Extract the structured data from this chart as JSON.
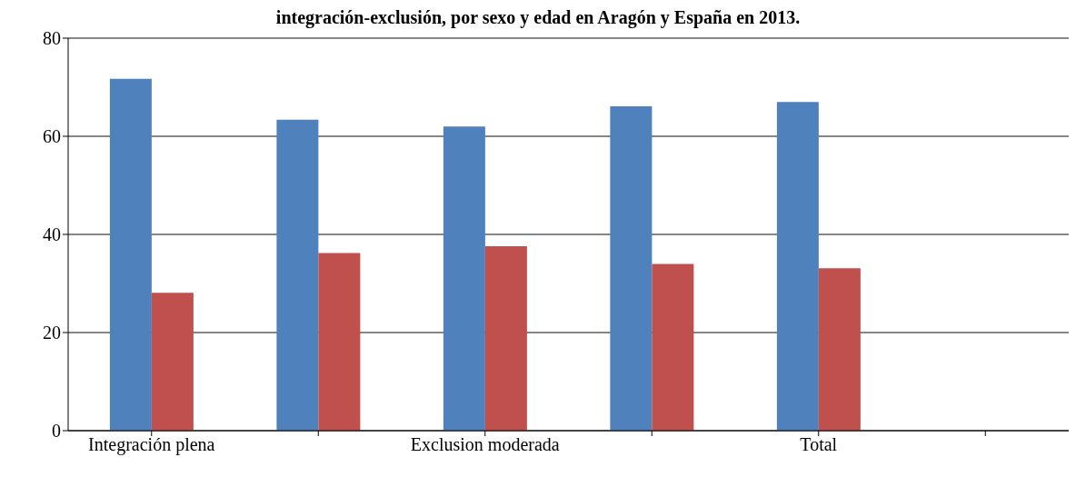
{
  "chart_data": {
    "type": "bar",
    "title": "integración-exclusión, por sexo y edad en Aragón y España en 2013.",
    "categories": [
      "Integración plena",
      null,
      "Exclusion moderada",
      null,
      "Total",
      null
    ],
    "series": [
      {
        "color": "#4f81bd",
        "values": [
          71.7,
          63.4,
          62.0,
          66.1,
          67.0,
          null
        ]
      },
      {
        "color": "#c0504d",
        "values": [
          28.1,
          36.2,
          37.6,
          34.0,
          33.1,
          null
        ]
      }
    ],
    "ylim": [
      0,
      80
    ],
    "yticks": [
      0,
      20,
      40,
      60,
      80
    ],
    "grid": "y",
    "legend": false
  }
}
